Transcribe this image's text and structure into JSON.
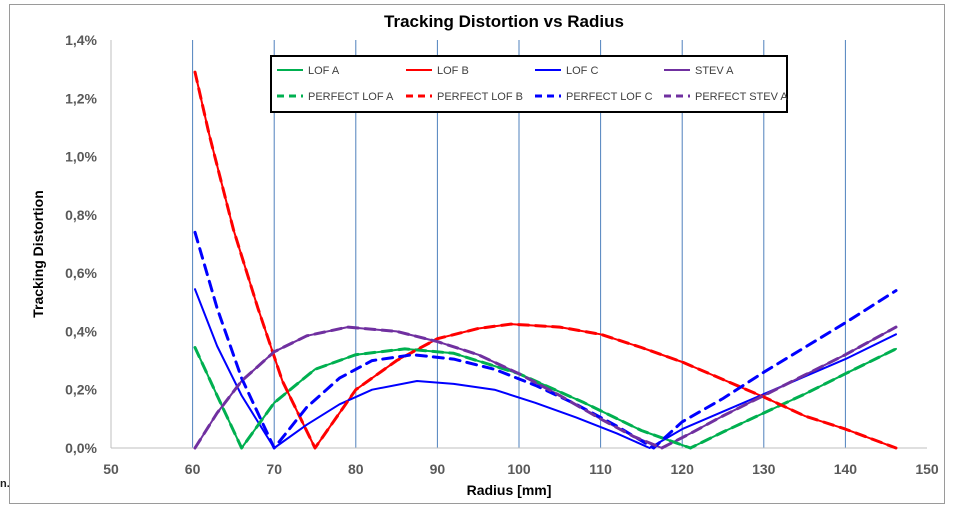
{
  "stray_text": "n.",
  "chart_data": {
    "type": "line",
    "title": "Tracking Distortion vs Radius",
    "xlabel": "Radius [mm]",
    "ylabel": "Tracking Distortion",
    "xlim": [
      50,
      150
    ],
    "ylim": [
      0,
      1.4
    ],
    "x_ticks": [
      50,
      60,
      70,
      80,
      90,
      100,
      110,
      120,
      130,
      140,
      150
    ],
    "x_tick_labels": [
      "50",
      "60",
      "70",
      "80",
      "90",
      "100",
      "110",
      "120",
      "130",
      "140",
      "150"
    ],
    "y_ticks": [
      0,
      0.2,
      0.4,
      0.6,
      0.8,
      1.0,
      1.2,
      1.4
    ],
    "y_tick_labels": [
      "0,0%",
      "0,2%",
      "0,4%",
      "0,6%",
      "0,8%",
      "1,0%",
      "1,2%",
      "1,4%"
    ],
    "grid": "vertical",
    "legend_position": "top-center",
    "series": [
      {
        "name": "LOF A",
        "color": "#00b050",
        "dash": false,
        "x": [
          60.3,
          63,
          66,
          70,
          75,
          80,
          86,
          92,
          100,
          108,
          115,
          121,
          125,
          130,
          135,
          140,
          146.2
        ],
        "y": [
          0.345,
          0.18,
          0.0,
          0.155,
          0.27,
          0.32,
          0.34,
          0.325,
          0.255,
          0.155,
          0.06,
          0.0,
          0.055,
          0.12,
          0.185,
          0.255,
          0.34
        ]
      },
      {
        "name": "LOF B",
        "color": "#ff0000",
        "dash": false,
        "x": [
          60.3,
          62,
          65,
          68,
          71,
          75,
          80,
          85,
          90,
          95,
          99,
          105,
          110,
          115,
          120,
          125,
          130,
          135,
          140,
          146.2
        ],
        "y": [
          1.29,
          1.08,
          0.75,
          0.48,
          0.23,
          0.0,
          0.2,
          0.3,
          0.375,
          0.41,
          0.425,
          0.415,
          0.39,
          0.345,
          0.295,
          0.235,
          0.175,
          0.11,
          0.065,
          0.0
        ]
      },
      {
        "name": "LOF C",
        "color": "#0000ff",
        "dash": false,
        "x": [
          60.3,
          63,
          66,
          70,
          74,
          78,
          82,
          87.5,
          92,
          97,
          102,
          107,
          112,
          116,
          120,
          125,
          130,
          135,
          140,
          146.2
        ],
        "y": [
          0.545,
          0.35,
          0.18,
          0.0,
          0.08,
          0.15,
          0.2,
          0.23,
          0.22,
          0.2,
          0.155,
          0.105,
          0.05,
          0.0,
          0.065,
          0.125,
          0.185,
          0.245,
          0.305,
          0.39
        ]
      },
      {
        "name": "STEV A",
        "color": "#7030a0",
        "dash": false,
        "x": [
          60.3,
          63,
          66,
          70,
          74,
          79,
          85,
          90,
          95,
          100,
          105,
          110,
          114,
          117.5,
          121,
          125,
          130,
          135,
          140,
          146.2
        ],
        "y": [
          0.0,
          0.12,
          0.23,
          0.33,
          0.385,
          0.415,
          0.4,
          0.365,
          0.32,
          0.255,
          0.18,
          0.1,
          0.04,
          0.0,
          0.05,
          0.11,
          0.18,
          0.25,
          0.32,
          0.415
        ]
      },
      {
        "name": "PERFECT LOF A",
        "color": "#00b050",
        "dash": true,
        "x": [
          60.3,
          63,
          66,
          70,
          75,
          80,
          86,
          92,
          100,
          108,
          115,
          121,
          125,
          130,
          135,
          140,
          146.2
        ],
        "y": [
          0.345,
          0.18,
          0.0,
          0.155,
          0.27,
          0.32,
          0.34,
          0.325,
          0.255,
          0.155,
          0.06,
          0.0,
          0.055,
          0.12,
          0.185,
          0.255,
          0.34
        ]
      },
      {
        "name": "PERFECT LOF B",
        "color": "#ff0000",
        "dash": true,
        "x": [
          60.3,
          62,
          65,
          68,
          71,
          75,
          80,
          85,
          90,
          95,
          99,
          105,
          110,
          115,
          120,
          125,
          130,
          135,
          140,
          146.2
        ],
        "y": [
          1.29,
          1.08,
          0.75,
          0.48,
          0.23,
          0.0,
          0.2,
          0.3,
          0.375,
          0.41,
          0.425,
          0.415,
          0.39,
          0.345,
          0.295,
          0.235,
          0.175,
          0.11,
          0.065,
          0.0
        ]
      },
      {
        "name": "PERFECT LOF C",
        "color": "#0000ff",
        "dash": true,
        "x": [
          60.3,
          63,
          66,
          70,
          74,
          78,
          82,
          87,
          92,
          97,
          102,
          107,
          112,
          116.5,
          120,
          125,
          130,
          135,
          140,
          146.2
        ],
        "y": [
          0.74,
          0.48,
          0.24,
          0.0,
          0.14,
          0.24,
          0.3,
          0.32,
          0.305,
          0.27,
          0.215,
          0.15,
          0.075,
          0.0,
          0.09,
          0.17,
          0.26,
          0.345,
          0.43,
          0.54
        ]
      },
      {
        "name": "PERFECT STEV A",
        "color": "#7030a0",
        "dash": true,
        "x": [
          60.3,
          63,
          66,
          70,
          74,
          79,
          85,
          90,
          95,
          100,
          105,
          110,
          114,
          117.5,
          121,
          125,
          130,
          135,
          140,
          146.2
        ],
        "y": [
          0.0,
          0.12,
          0.23,
          0.33,
          0.385,
          0.415,
          0.4,
          0.365,
          0.32,
          0.255,
          0.18,
          0.1,
          0.04,
          0.0,
          0.05,
          0.11,
          0.18,
          0.25,
          0.32,
          0.415
        ]
      }
    ]
  }
}
